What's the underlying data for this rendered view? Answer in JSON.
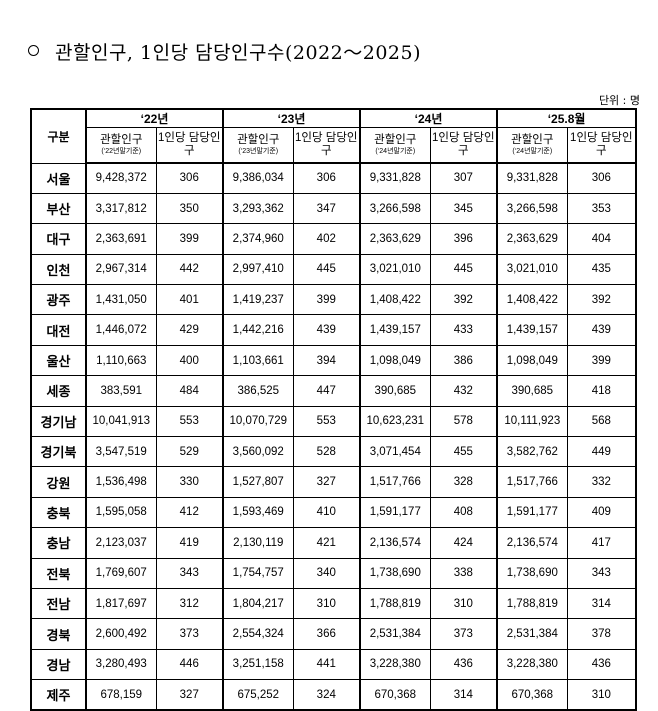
{
  "title": "관할인구, 1인당 담당인구수(2022～2025)",
  "unit": "단위 : 명",
  "table": {
    "corner": "구분",
    "years": [
      "‘22년",
      "‘23년",
      "‘24년",
      "‘25.8월"
    ],
    "sub_pop": "관할인구",
    "sub_per": "1인당 담당인구",
    "notes": [
      "(‘22년말기준)",
      "(‘23년말기준)",
      "(‘24년말기준)",
      "(‘24년말기준)"
    ],
    "rows": [
      {
        "region": "서울",
        "v": [
          "9,428,372",
          "306",
          "9,386,034",
          "306",
          "9,331,828",
          "307",
          "9,331,828",
          "306"
        ]
      },
      {
        "region": "부산",
        "v": [
          "3,317,812",
          "350",
          "3,293,362",
          "347",
          "3,266,598",
          "345",
          "3,266,598",
          "353"
        ]
      },
      {
        "region": "대구",
        "v": [
          "2,363,691",
          "399",
          "2,374,960",
          "402",
          "2,363,629",
          "396",
          "2,363,629",
          "404"
        ]
      },
      {
        "region": "인천",
        "v": [
          "2,967,314",
          "442",
          "2,997,410",
          "445",
          "3,021,010",
          "445",
          "3,021,010",
          "435"
        ]
      },
      {
        "region": "광주",
        "v": [
          "1,431,050",
          "401",
          "1,419,237",
          "399",
          "1,408,422",
          "392",
          "1,408,422",
          "392"
        ]
      },
      {
        "region": "대전",
        "v": [
          "1,446,072",
          "429",
          "1,442,216",
          "439",
          "1,439,157",
          "433",
          "1,439,157",
          "439"
        ]
      },
      {
        "region": "울산",
        "v": [
          "1,110,663",
          "400",
          "1,103,661",
          "394",
          "1,098,049",
          "386",
          "1,098,049",
          "399"
        ]
      },
      {
        "region": "세종",
        "v": [
          "383,591",
          "484",
          "386,525",
          "447",
          "390,685",
          "432",
          "390,685",
          "418"
        ]
      },
      {
        "region": "경기남",
        "v": [
          "10,041,913",
          "553",
          "10,070,729",
          "553",
          "10,623,231",
          "578",
          "10,111,923",
          "568"
        ]
      },
      {
        "region": "경기북",
        "v": [
          "3,547,519",
          "529",
          "3,560,092",
          "528",
          "3,071,454",
          "455",
          "3,582,762",
          "449"
        ]
      },
      {
        "region": "강원",
        "v": [
          "1,536,498",
          "330",
          "1,527,807",
          "327",
          "1,517,766",
          "328",
          "1,517,766",
          "332"
        ]
      },
      {
        "region": "충북",
        "v": [
          "1,595,058",
          "412",
          "1,593,469",
          "410",
          "1,591,177",
          "408",
          "1,591,177",
          "409"
        ]
      },
      {
        "region": "충남",
        "v": [
          "2,123,037",
          "419",
          "2,130,119",
          "421",
          "2,136,574",
          "424",
          "2,136,574",
          "417"
        ]
      },
      {
        "region": "전북",
        "v": [
          "1,769,607",
          "343",
          "1,754,757",
          "340",
          "1,738,690",
          "338",
          "1,738,690",
          "343"
        ]
      },
      {
        "region": "전남",
        "v": [
          "1,817,697",
          "312",
          "1,804,217",
          "310",
          "1,788,819",
          "310",
          "1,788,819",
          "314"
        ]
      },
      {
        "region": "경북",
        "v": [
          "2,600,492",
          "373",
          "2,554,324",
          "366",
          "2,531,384",
          "373",
          "2,531,384",
          "378"
        ]
      },
      {
        "region": "경남",
        "v": [
          "3,280,493",
          "446",
          "3,251,158",
          "441",
          "3,228,380",
          "436",
          "3,228,380",
          "436"
        ]
      },
      {
        "region": "제주",
        "v": [
          "678,159",
          "327",
          "675,252",
          "324",
          "670,368",
          "314",
          "670,368",
          "310"
        ]
      }
    ]
  }
}
